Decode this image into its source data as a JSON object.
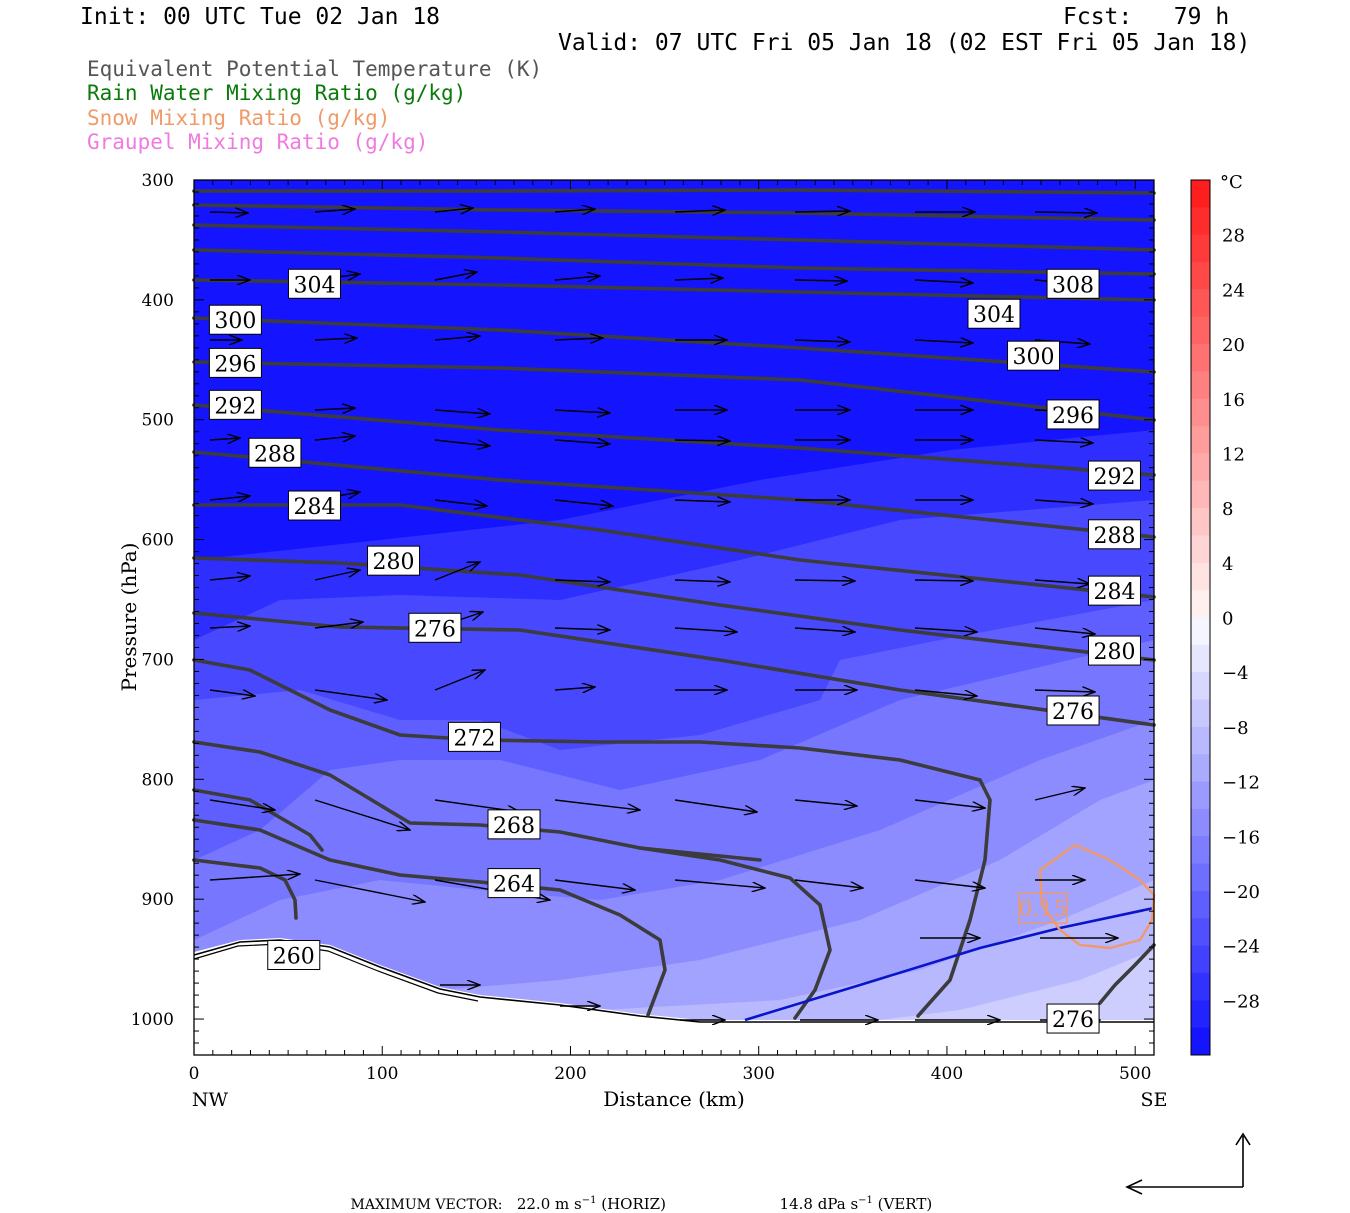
{
  "header": {
    "init": "Init: 00 UTC Tue 02 Jan 18",
    "fcst": "Fcst:   79 h",
    "valid": "Valid: 07 UTC Fri 05 Jan 18 (02 EST Fri 05 Jan 18)"
  },
  "legend": [
    {
      "label": "Equivalent Potential Temperature (K)",
      "color": "#555555"
    },
    {
      "label": "Rain Water Mixing Ratio (g/kg)",
      "color": "#0a7a0a"
    },
    {
      "label": "Snow Mixing Ratio (g/kg)",
      "color": "#f09a6a"
    },
    {
      "label": "Graupel Mixing Ratio (g/kg)",
      "color": "#f07ae0"
    }
  ],
  "chart_data": {
    "type": "heatmap",
    "xlabel": "Distance (km)",
    "ylabel": "Pressure (hPa)",
    "xlim": [
      0,
      510
    ],
    "ylim": [
      1030,
      300
    ],
    "x_ticks": [
      0,
      100,
      200,
      300,
      400,
      500
    ],
    "y_ticks": [
      300,
      400,
      500,
      600,
      700,
      800,
      900,
      1000
    ],
    "x_end_labels": {
      "left": "NW",
      "right": "SE"
    },
    "colorbar": {
      "unit": "°C",
      "tick_labels": [
        "28",
        "24",
        "20",
        "16",
        "12",
        "8",
        "4",
        "0",
        "−4",
        "−8",
        "−12",
        "−16",
        "−20",
        "−24",
        "−28"
      ],
      "tick_values": [
        28,
        24,
        20,
        16,
        12,
        8,
        4,
        0,
        -4,
        -8,
        -12,
        -16,
        -20,
        -24,
        -28
      ],
      "range": [
        -32,
        32
      ]
    },
    "theta_e_labels": [
      {
        "text": "304",
        "x": 64,
        "p": 387
      },
      {
        "text": "300",
        "x": 22,
        "p": 417
      },
      {
        "text": "296",
        "x": 22,
        "p": 453
      },
      {
        "text": "292",
        "x": 22,
        "p": 488
      },
      {
        "text": "288",
        "x": 43,
        "p": 528
      },
      {
        "text": "284",
        "x": 64,
        "p": 572
      },
      {
        "text": "280",
        "x": 106,
        "p": 618
      },
      {
        "text": "276",
        "x": 128,
        "p": 674
      },
      {
        "text": "272",
        "x": 149,
        "p": 765
      },
      {
        "text": "268",
        "x": 170,
        "p": 838
      },
      {
        "text": "264",
        "x": 170,
        "p": 887
      },
      {
        "text": "260",
        "x": 53,
        "p": 947
      },
      {
        "text": "308",
        "x": 467,
        "p": 387
      },
      {
        "text": "304",
        "x": 425,
        "p": 412
      },
      {
        "text": "300",
        "x": 446,
        "p": 447
      },
      {
        "text": "296",
        "x": 467,
        "p": 496
      },
      {
        "text": "292",
        "x": 489,
        "p": 547
      },
      {
        "text": "288",
        "x": 489,
        "p": 596
      },
      {
        "text": "284",
        "x": 489,
        "p": 643
      },
      {
        "text": "280",
        "x": 489,
        "p": 693
      },
      {
        "text": "276",
        "x": 467,
        "p": 743
      },
      {
        "text": "276",
        "x": 467,
        "p": 1000
      }
    ],
    "snow_label": {
      "text": "0.15",
      "x": 452,
      "p": 908
    }
  },
  "footer": {
    "max_vector_label": "MAXIMUM VECTOR:",
    "horiz": "22.0 m s",
    "horiz_tail": " (HORIZ)",
    "vert": "14.8 dPa s",
    "vert_tail": " (VERT)",
    "sup": "−1"
  }
}
